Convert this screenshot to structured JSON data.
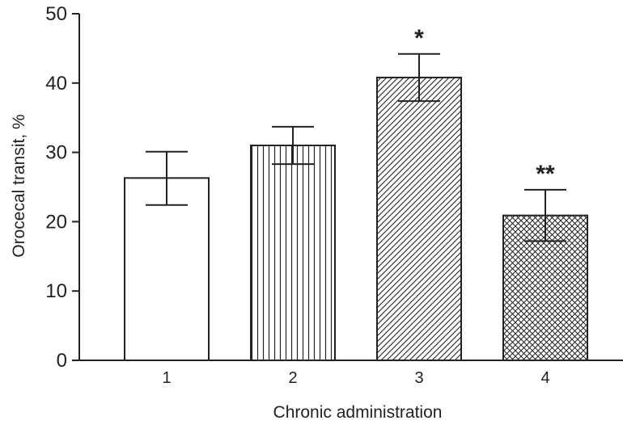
{
  "chart_data": {
    "type": "bar",
    "title": "",
    "xlabel": "Chronic administration",
    "ylabel": "Orocecal transit, %",
    "categories": [
      "1",
      "2",
      "3",
      "4"
    ],
    "values": [
      26.3,
      31.0,
      40.8,
      20.9
    ],
    "error_upper": [
      30.1,
      33.7,
      44.2,
      24.6
    ],
    "error_lower": [
      22.4,
      28.3,
      37.4,
      17.2
    ],
    "annotations": [
      "",
      "",
      "*",
      "**"
    ],
    "bar_patterns": [
      "none",
      "vertical-lines",
      "diagonal-lines",
      "crosshatch"
    ],
    "ylim": [
      0,
      50
    ],
    "yticks": [
      0,
      10,
      20,
      30,
      40,
      50
    ],
    "grid": false,
    "legend": "none",
    "colors": {
      "bar_fill": "#ffffff",
      "bar_stroke": "#222222",
      "pattern": "#222222",
      "axis": "#222222",
      "text": "#222222"
    }
  }
}
